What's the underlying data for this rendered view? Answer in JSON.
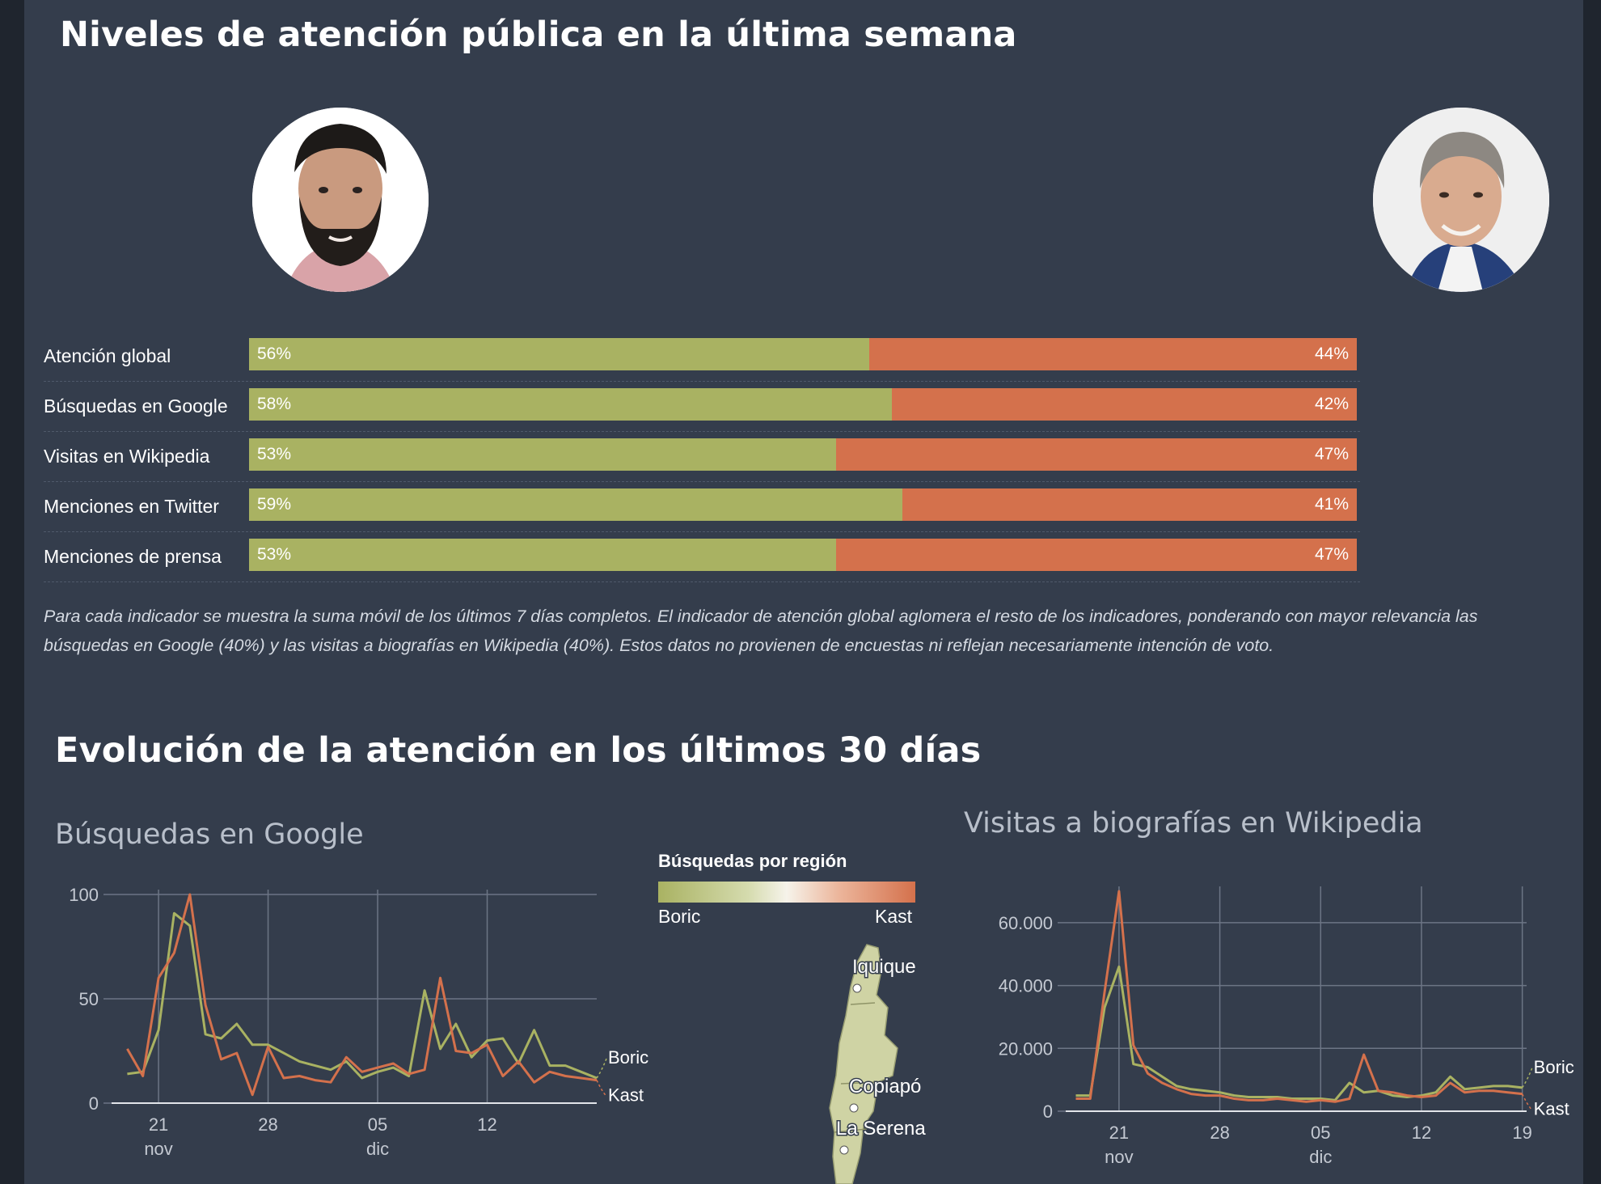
{
  "sections": {
    "attention_title": "Niveles de atención pública en la última semana",
    "evolution_title": "Evolución de la atención en los últimos 30 días"
  },
  "candidates": [
    {
      "name": "Boric",
      "color": "#a9b262"
    },
    {
      "name": "Kast",
      "color": "#d4714c"
    }
  ],
  "indicators": [
    {
      "label": "Atención global",
      "boric_pct": 56,
      "kast_pct": 44,
      "boric_text": "56%",
      "kast_text": "44%"
    },
    {
      "label": "Búsquedas en Google",
      "boric_pct": 58,
      "kast_pct": 42,
      "boric_text": "58%",
      "kast_text": "42%"
    },
    {
      "label": "Visitas en Wikipedia",
      "boric_pct": 53,
      "kast_pct": 47,
      "boric_text": "53%",
      "kast_text": "47%"
    },
    {
      "label": "Menciones en Twitter",
      "boric_pct": 59,
      "kast_pct": 41,
      "boric_text": "59%",
      "kast_text": "41%"
    },
    {
      "label": "Menciones de prensa",
      "boric_pct": 53,
      "kast_pct": 47,
      "boric_text": "53%",
      "kast_text": "47%"
    }
  ],
  "note": "Para cada indicador se muestra la suma móvil de los últimos 7 días completos. El indicador de atención global aglomera el resto de los indicadores, ponderando con mayor relevancia las búsquedas en Google (40%) y las visitas a biografías en Wikipedia (40%). Estos datos no provienen de encuestas ni reflejan necesariamente intención de voto.",
  "map": {
    "legend_title": "Búsquedas por región",
    "legend_left": "Boric",
    "legend_right": "Kast",
    "cities": [
      "Iquique",
      "Copiapó",
      "La Serena"
    ]
  },
  "chart_data": [
    {
      "type": "line",
      "title": "Búsquedas en Google",
      "x_ticks": [
        {
          "day": 21,
          "label": "21",
          "sub": "nov"
        },
        {
          "day": 28,
          "label": "28",
          "sub": ""
        },
        {
          "day": 35,
          "label": "05",
          "sub": "dic"
        },
        {
          "day": 42,
          "label": "12",
          "sub": ""
        }
      ],
      "ylim": [
        0,
        100
      ],
      "y_ticks": [
        {
          "value": 0,
          "label": "0"
        },
        {
          "value": 50,
          "label": "50"
        },
        {
          "value": 100,
          "label": "100"
        }
      ],
      "x": [
        19,
        20,
        21,
        22,
        23,
        24,
        25,
        26,
        27,
        28,
        29,
        30,
        31,
        32,
        33,
        34,
        35,
        36,
        37,
        38,
        39,
        40,
        41,
        42,
        43,
        44,
        45,
        46,
        47,
        48,
        49
      ],
      "series": [
        {
          "name": "Boric",
          "color": "#a9b262",
          "values": [
            14,
            15,
            35,
            91,
            85,
            33,
            31,
            38,
            28,
            28,
            24,
            20,
            18,
            16,
            20,
            12,
            15,
            17,
            13,
            54,
            26,
            38,
            22,
            30,
            31,
            19,
            35,
            18,
            18,
            15,
            12
          ]
        },
        {
          "name": "Kast",
          "color": "#d4714c",
          "values": [
            26,
            13,
            60,
            72,
            100,
            47,
            21,
            24,
            4,
            27,
            12,
            13,
            11,
            10,
            22,
            15,
            17,
            19,
            14,
            16,
            60,
            25,
            24,
            28,
            13,
            20,
            10,
            15,
            13,
            12,
            11
          ]
        }
      ],
      "xlabel": "",
      "ylabel": "",
      "grid": true
    },
    {
      "type": "line",
      "title": "Visitas a biografías en Wikipedia",
      "x_ticks": [
        {
          "day": 21,
          "label": "21",
          "sub": "nov"
        },
        {
          "day": 28,
          "label": "28",
          "sub": ""
        },
        {
          "day": 35,
          "label": "05",
          "sub": "dic"
        },
        {
          "day": 42,
          "label": "12",
          "sub": ""
        },
        {
          "day": 49,
          "label": "19",
          "sub": ""
        }
      ],
      "ylim": [
        0,
        70000
      ],
      "y_ticks": [
        {
          "value": 0,
          "label": "0"
        },
        {
          "value": 20000,
          "label": "20.000"
        },
        {
          "value": 40000,
          "label": "40.000"
        },
        {
          "value": 60000,
          "label": "60.000"
        }
      ],
      "x": [
        18,
        19,
        20,
        21,
        22,
        23,
        24,
        25,
        26,
        27,
        28,
        29,
        30,
        31,
        32,
        33,
        34,
        35,
        36,
        37,
        38,
        39,
        40,
        41,
        42,
        43,
        44,
        45,
        46,
        47,
        48,
        49
      ],
      "series": [
        {
          "name": "Boric",
          "color": "#a9b262",
          "values": [
            5000,
            5000,
            33000,
            46000,
            15000,
            14000,
            11000,
            8000,
            7000,
            6500,
            6000,
            5000,
            4500,
            4500,
            4500,
            4000,
            4000,
            4000,
            3500,
            9000,
            6000,
            6500,
            5000,
            4500,
            5000,
            6000,
            11000,
            7000,
            7500,
            8000,
            8000,
            7500
          ]
        },
        {
          "name": "Kast",
          "color": "#d4714c",
          "values": [
            4000,
            4000,
            38000,
            70000,
            21000,
            12000,
            9000,
            7000,
            5500,
            5000,
            5000,
            4000,
            3500,
            3500,
            4000,
            3500,
            3000,
            3500,
            3000,
            4000,
            18000,
            6500,
            6000,
            5000,
            4500,
            5000,
            9000,
            6000,
            6500,
            6500,
            6000,
            5500
          ]
        }
      ],
      "xlabel": "",
      "ylabel": "",
      "grid": true
    }
  ]
}
